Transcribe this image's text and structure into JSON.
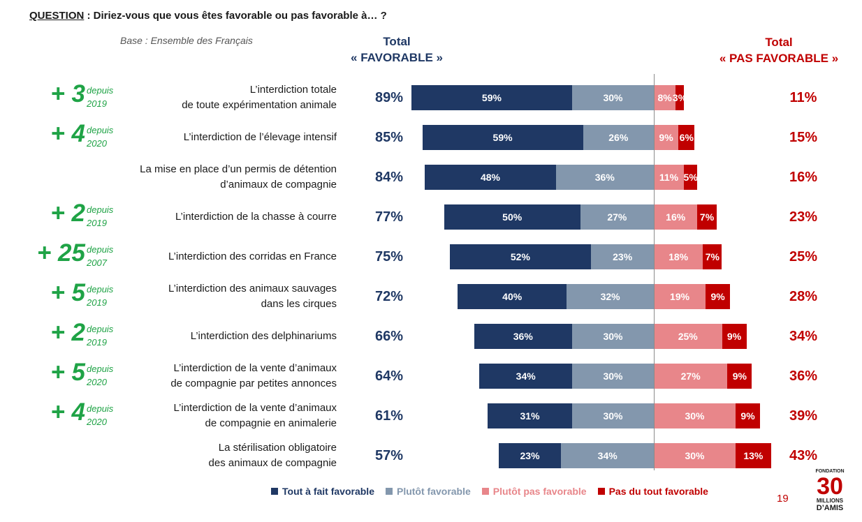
{
  "question": {
    "label": "QUESTION",
    "text": " : Diriez-vous que vous êtes favorable ou pas favorable à… ?"
  },
  "base": "Base : Ensemble des Français",
  "headers": {
    "favorable_line1": "Total",
    "favorable_line2": "« FAVORABLE »",
    "pas_favorable_line1": "Total",
    "pas_favorable_line2": "« PAS FAVORABLE »"
  },
  "colors": {
    "tout_a_fait": "#1f3864",
    "plutot": "#8397ad",
    "plutot_pas": "#e8868a",
    "pas_du_tout": "#c00000",
    "delta": "#1fa346"
  },
  "chart_data": {
    "type": "bar",
    "orientation": "horizontal-diverging",
    "categories": [
      [
        "L’interdiction totale",
        "de toute expérimentation animale"
      ],
      [
        "L’interdiction de l’élevage intensif"
      ],
      [
        "La mise en place d’un permis de détention",
        "d’animaux de compagnie"
      ],
      [
        "L’interdiction de la chasse à courre"
      ],
      [
        "L’interdiction des corridas en France"
      ],
      [
        "L’interdiction des animaux sauvages",
        "dans les cirques"
      ],
      [
        "L’interdiction des delphinariums"
      ],
      [
        "L’interdiction de la vente d’animaux",
        "de compagnie par petites annonces"
      ],
      [
        "L’interdiction de la vente d’animaux",
        "de compagnie en animalerie"
      ],
      [
        "La stérilisation obligatoire",
        "des animaux de compagnie"
      ]
    ],
    "series": [
      {
        "name": "Tout à fait favorable",
        "values": [
          59,
          59,
          48,
          50,
          52,
          40,
          36,
          34,
          31,
          23
        ]
      },
      {
        "name": "Plutôt favorable",
        "values": [
          30,
          26,
          36,
          27,
          23,
          32,
          30,
          30,
          30,
          34
        ]
      },
      {
        "name": "Plutôt pas favorable",
        "values": [
          8,
          9,
          11,
          16,
          18,
          19,
          25,
          27,
          30,
          30
        ]
      },
      {
        "name": "Pas du tout favorable",
        "values": [
          3,
          6,
          5,
          7,
          7,
          9,
          9,
          9,
          9,
          13
        ]
      }
    ],
    "total_favorable": [
      "89%",
      "85%",
      "84%",
      "77%",
      "75%",
      "72%",
      "66%",
      "64%",
      "61%",
      "57%"
    ],
    "total_pas_favorable": [
      "11%",
      "15%",
      "16%",
      "23%",
      "25%",
      "28%",
      "34%",
      "36%",
      "39%",
      "43%"
    ],
    "evolution": [
      {
        "delta": "+ 3",
        "since_word": "depuis",
        "since_year": "2019"
      },
      {
        "delta": "+ 4",
        "since_word": "depuis",
        "since_year": "2020"
      },
      null,
      {
        "delta": "+ 2",
        "since_word": "depuis",
        "since_year": "2019"
      },
      {
        "delta": "+ 25",
        "since_word": "depuis",
        "since_year": "2007"
      },
      {
        "delta": "+ 5",
        "since_word": "depuis",
        "since_year": "2019"
      },
      {
        "delta": "+ 2",
        "since_word": "depuis",
        "since_year": "2019"
      },
      {
        "delta": "+ 5",
        "since_word": "depuis",
        "since_year": "2020"
      },
      {
        "delta": "+ 4",
        "since_word": "depuis",
        "since_year": "2020"
      },
      null
    ],
    "value_suffix": "%",
    "legend_position": "bottom"
  },
  "legend": [
    "Tout à fait favorable",
    "Plutôt favorable",
    "Plutôt pas favorable",
    "Pas du tout favorable"
  ],
  "page_number": "19",
  "logo": {
    "top": "FONDATION",
    "number": "30",
    "line1": "MILLIONS",
    "line2": "D’AMIS"
  }
}
